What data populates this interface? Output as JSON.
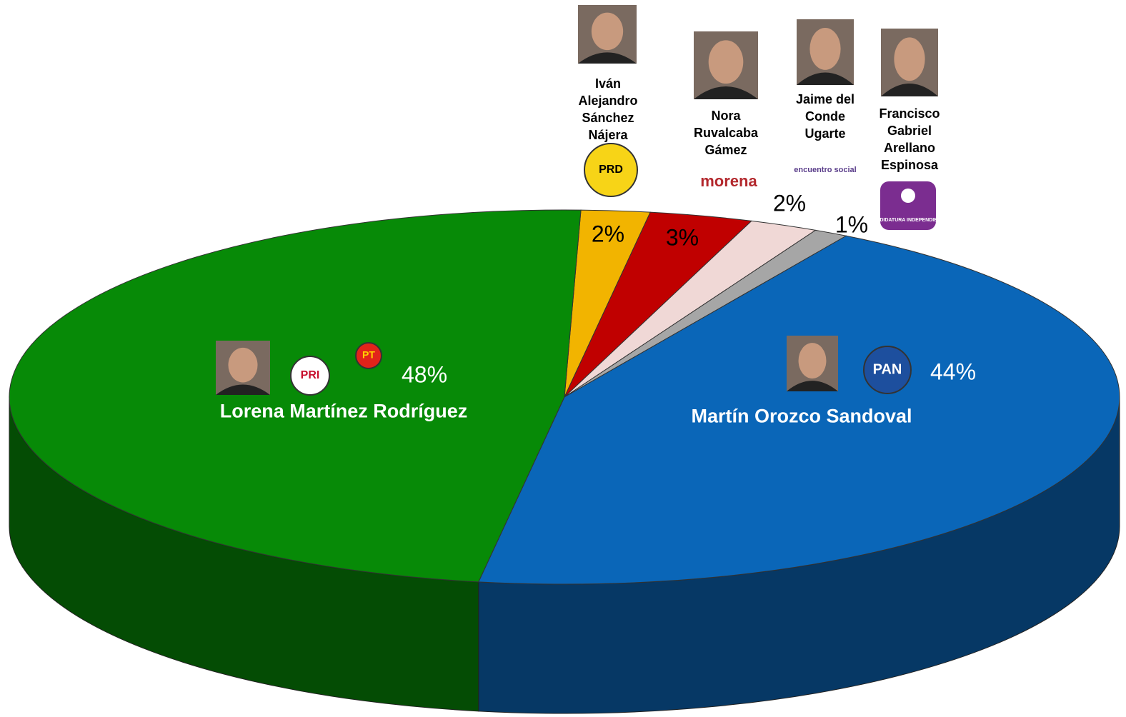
{
  "chart_data": {
    "type": "pie",
    "categories": [
      "Iván Alejandro Sánchez Nájera",
      "Nora Ruvalcaba Gámez",
      "Jaime del Conde Ugarte",
      "Francisco Gabriel Arellano Espinosa",
      "Martín Orozco Sandoval",
      "Lorena Martínez Rodríguez"
    ],
    "values": [
      2,
      3,
      2,
      1,
      44,
      48
    ],
    "value_labels": [
      "2%",
      "3%",
      "2%",
      "1%",
      "44%",
      "48%"
    ],
    "colors": [
      "#f2b400",
      "#c00000",
      "#f0d8d6",
      "#a6a6a6",
      "#0a66b8",
      "#078a07"
    ],
    "parties": [
      [
        "PRD"
      ],
      [
        "morena"
      ],
      [
        "encuentro social"
      ],
      [
        "CANDIDATURA INDEPENDIENTE"
      ],
      [
        "PAN"
      ],
      [
        "PRI",
        "PT"
      ]
    ]
  }
}
